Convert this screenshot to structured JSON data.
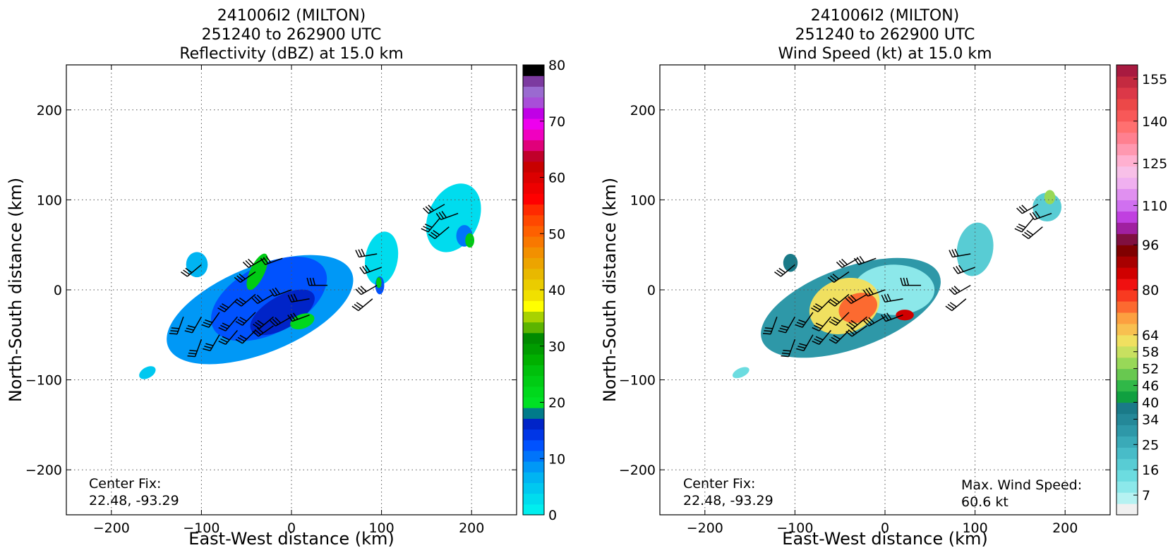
{
  "chart_data": [
    {
      "type": "heatmap",
      "title_lines": [
        "241006I2 (MILTON)",
        "251240 to 262900 UTC",
        "Reflectivity (dBZ) at 15.0 km"
      ],
      "xlabel": "East-West distance (km)",
      "ylabel": "North-South distance (km)",
      "xlim": [
        -250,
        250
      ],
      "ylim": [
        -250,
        250
      ],
      "xticks": [
        -200,
        -100,
        0,
        100,
        200
      ],
      "yticks": [
        -200,
        -100,
        0,
        100,
        200
      ],
      "grid": true,
      "annotation_left": [
        "Center Fix:",
        "22.48, -93.29"
      ],
      "annotation_right": [],
      "colorbar": {
        "min": 0,
        "max": 80,
        "ticks": [
          0,
          10,
          20,
          30,
          40,
          50,
          60,
          70,
          80
        ],
        "colors": [
          "#00eeee",
          "#00dcee",
          "#00c8f0",
          "#00b4f2",
          "#0098f6",
          "#0074fa",
          "#0052fe",
          "#0036e6",
          "#0024c8",
          "#007b8a",
          "#00e024",
          "#00d81c",
          "#00cc14",
          "#00c00c",
          "#00b000",
          "#009c00",
          "#008a00",
          "#5cb400",
          "#a8d200",
          "#ffff00",
          "#f0e000",
          "#eacc00",
          "#e8b800",
          "#eca400",
          "#f29000",
          "#f87800",
          "#fe6000",
          "#ff4800",
          "#ff2a00",
          "#ff0000",
          "#ee0000",
          "#dc0000",
          "#c80000",
          "#c0002a",
          "#e0007a",
          "#f000c0",
          "#ee00ee",
          "#c000e6",
          "#a84ed8",
          "#9a6ad0",
          "#7c3aa0",
          "#000000"
        ]
      },
      "echo_regions": [
        {
          "label": "main-core",
          "cx": -35,
          "cy": -22,
          "rx": 110,
          "ry": 48,
          "rot": -22,
          "color": "#0098f6"
        },
        {
          "label": "main-core-inner",
          "cx": -25,
          "cy": -10,
          "rx": 70,
          "ry": 38,
          "rot": -28,
          "color": "#0052fe"
        },
        {
          "label": "main-core-deep",
          "cx": -10,
          "cy": -25,
          "rx": 40,
          "ry": 18,
          "rot": -30,
          "color": "#0024c8"
        },
        {
          "label": "green-band",
          "cx": -38,
          "cy": 20,
          "rx": 8,
          "ry": 22,
          "rot": 25,
          "color": "#00cc14"
        },
        {
          "label": "green-patch",
          "cx": 12,
          "cy": -35,
          "rx": 14,
          "ry": 8,
          "rot": -20,
          "color": "#00d81c"
        },
        {
          "label": "west-blob",
          "cx": -105,
          "cy": 28,
          "rx": 12,
          "ry": 14,
          "rot": 0,
          "color": "#00b4f2"
        },
        {
          "label": "sw-blob",
          "cx": -160,
          "cy": -92,
          "rx": 10,
          "ry": 6,
          "rot": -30,
          "color": "#00c8f0"
        },
        {
          "label": "east-blob",
          "cx": 100,
          "cy": 35,
          "rx": 18,
          "ry": 30,
          "rot": 10,
          "color": "#00dcee"
        },
        {
          "label": "east-blob-core",
          "cx": 98,
          "cy": 5,
          "rx": 5,
          "ry": 10,
          "rot": 0,
          "color": "#0052fe"
        },
        {
          "label": "east-blob-green",
          "cx": 97,
          "cy": 8,
          "rx": 3,
          "ry": 6,
          "rot": 0,
          "color": "#00cc14"
        },
        {
          "label": "ne-blob",
          "cx": 180,
          "cy": 80,
          "rx": 28,
          "ry": 40,
          "rot": 25,
          "color": "#00dcee"
        },
        {
          "label": "ne-blob-core",
          "cx": 192,
          "cy": 60,
          "rx": 9,
          "ry": 12,
          "rot": 0,
          "color": "#0074fa"
        },
        {
          "label": "ne-blob-green",
          "cx": 198,
          "cy": 55,
          "rx": 5,
          "ry": 8,
          "rot": 0,
          "color": "#00cc14"
        }
      ]
    },
    {
      "type": "heatmap",
      "title_lines": [
        "241006I2 (MILTON)",
        "251240 to 262900 UTC",
        "Wind Speed (kt) at 15.0 km"
      ],
      "xlabel": "East-West distance (km)",
      "ylabel": "North-South distance (km)",
      "xlim": [
        -250,
        250
      ],
      "ylim": [
        -250,
        250
      ],
      "xticks": [
        -200,
        -100,
        0,
        100,
        200
      ],
      "yticks": [
        -200,
        -100,
        0,
        100,
        200
      ],
      "grid": true,
      "annotation_left": [
        "Center Fix:",
        "22.48, -93.29"
      ],
      "annotation_right": [
        "Max. Wind Speed:",
        "60.6 kt"
      ],
      "colorbar": {
        "min": 0,
        "max": 160,
        "ticks": [
          7,
          16,
          25,
          34,
          40,
          46,
          52,
          58,
          64,
          80,
          96,
          110,
          125,
          140,
          155
        ],
        "colors": [
          "#f0f0f0",
          "#b6f2f2",
          "#8ce8ea",
          "#6cdce0",
          "#58ccd4",
          "#48bcc8",
          "#3aaab8",
          "#2e98a8",
          "#248898",
          "#1a7a88",
          "#10a040",
          "#30b848",
          "#68c850",
          "#98d858",
          "#c8e060",
          "#f0e060",
          "#f8c050",
          "#fca040",
          "#fc6a30",
          "#f83a20",
          "#f01010",
          "#d00000",
          "#a80000",
          "#800000",
          "#801040",
          "#a020a0",
          "#c040e0",
          "#d070f0",
          "#e090f0",
          "#f0b0f0",
          "#f8c0e8",
          "#ffb0d0",
          "#ff98b0",
          "#ff8090",
          "#ff7070",
          "#f85858",
          "#ec4848",
          "#dc3848",
          "#c42a40",
          "#a81a40"
        ]
      },
      "wind_regions": [
        {
          "label": "main",
          "cx": -38,
          "cy": -20,
          "rx": 105,
          "ry": 45,
          "rot": -20,
          "color": "#2e98a8"
        },
        {
          "label": "main-light",
          "cx": 10,
          "cy": 0,
          "rx": 45,
          "ry": 28,
          "rot": 0,
          "color": "#8ce8ea"
        },
        {
          "label": "main-warm",
          "cx": -45,
          "cy": -18,
          "rx": 40,
          "ry": 30,
          "rot": -20,
          "color": "#f0e060"
        },
        {
          "label": "main-hot",
          "cx": -30,
          "cy": -20,
          "rx": 22,
          "ry": 16,
          "rot": -20,
          "color": "#fc6a30"
        },
        {
          "label": "main-hot2",
          "cx": 22,
          "cy": -28,
          "rx": 10,
          "ry": 6,
          "rot": 0,
          "color": "#d00000"
        },
        {
          "label": "west-blob",
          "cx": -105,
          "cy": 30,
          "rx": 8,
          "ry": 10,
          "rot": 0,
          "color": "#1a7a88"
        },
        {
          "label": "sw-blob",
          "cx": -160,
          "cy": -92,
          "rx": 10,
          "ry": 5,
          "rot": -25,
          "color": "#6cdce0"
        },
        {
          "label": "east-blob",
          "cx": 100,
          "cy": 45,
          "rx": 20,
          "ry": 30,
          "rot": 10,
          "color": "#58ccd4"
        },
        {
          "label": "ne-blob",
          "cx": 180,
          "cy": 92,
          "rx": 16,
          "ry": 16,
          "rot": 0,
          "color": "#58ccd4"
        },
        {
          "label": "ne-blob-green",
          "cx": 183,
          "cy": 103,
          "rx": 6,
          "ry": 8,
          "rot": 0,
          "color": "#98d858"
        }
      ]
    }
  ]
}
